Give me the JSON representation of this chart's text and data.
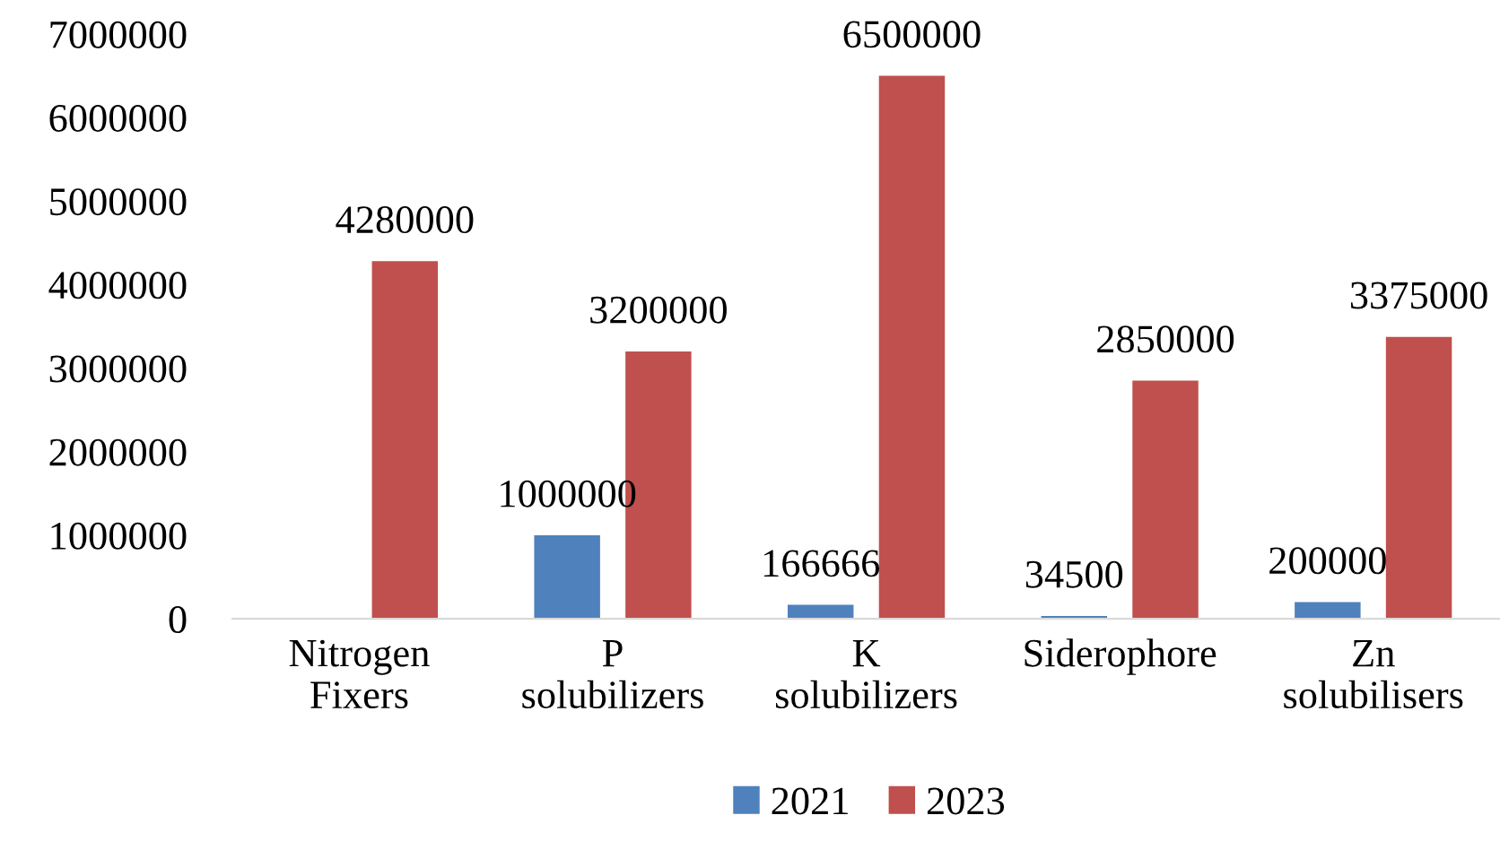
{
  "chart_data": {
    "type": "bar",
    "categories": [
      "Nitrogen\nFixers",
      "P\nsolubilizers",
      "K\nsolubilizers",
      "Siderophore",
      "Zn\nsolubilisers"
    ],
    "series": [
      {
        "name": "2021",
        "color": "#4f81bd",
        "values": [
          null,
          1000000,
          166666,
          34500,
          200000
        ]
      },
      {
        "name": "2023",
        "color": "#c0504d",
        "values": [
          4280000,
          3200000,
          6500000,
          2850000,
          3375000
        ]
      }
    ],
    "ylim": [
      0,
      7000000
    ],
    "yticks": [
      0,
      1000000,
      2000000,
      3000000,
      4000000,
      5000000,
      6000000,
      7000000
    ],
    "grid": false,
    "legend": "bottom",
    "data_labels": true
  }
}
